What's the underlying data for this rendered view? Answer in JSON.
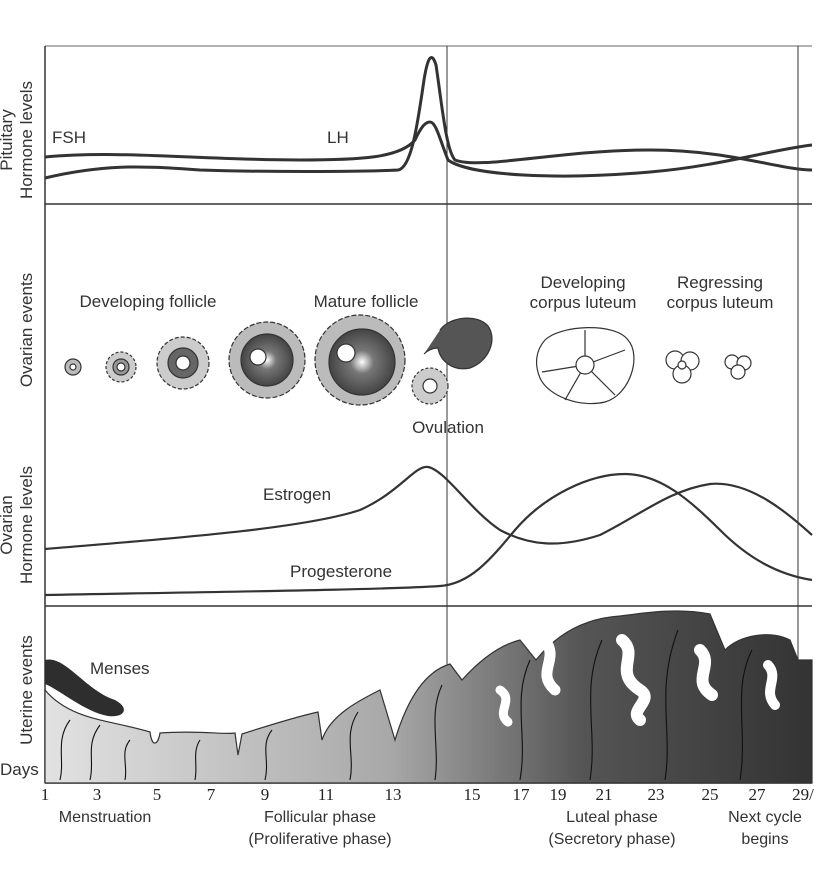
{
  "panels": {
    "pituitary_ylabel": [
      "Pituitary",
      "Hormone levels"
    ],
    "ovarian_events_ylabel": "Ovarian events",
    "ovarian_hormone_ylabel": [
      "Ovarian",
      "Hormone levels"
    ],
    "uterine_ylabel": "Uterine events"
  },
  "hormones": {
    "fsh": "FSH",
    "lh": "LH",
    "estrogen": "Estrogen",
    "progesterone": "Progesterone"
  },
  "ovarian": {
    "developing_follicle": "Developing follicle",
    "mature_follicle": "Mature follicle",
    "ovulation": "Ovulation",
    "developing_cl": [
      "Developing",
      "corpus luteum"
    ],
    "regressing_cl": [
      "Regressing",
      "corpus luteum"
    ]
  },
  "uterine": {
    "menses": "Menses"
  },
  "days": {
    "label": "Days",
    "ticks": [
      "1",
      "3",
      "5",
      "7",
      "9",
      "11",
      "13",
      "15",
      "17",
      "19",
      "21",
      "23",
      "25",
      "27",
      "29/"
    ]
  },
  "phases": {
    "menstruation": "Menstruation",
    "follicular": [
      "Follicular phase",
      "(Proliferative phase)"
    ],
    "luteal": [
      "Luteal phase",
      "(Secretory phase)"
    ],
    "next_cycle": [
      "Next cycle",
      "begins"
    ]
  },
  "colors": {
    "line": "#333333",
    "tissue_dark": "#3a3a3a",
    "tissue_light": "#bdbdbd"
  }
}
